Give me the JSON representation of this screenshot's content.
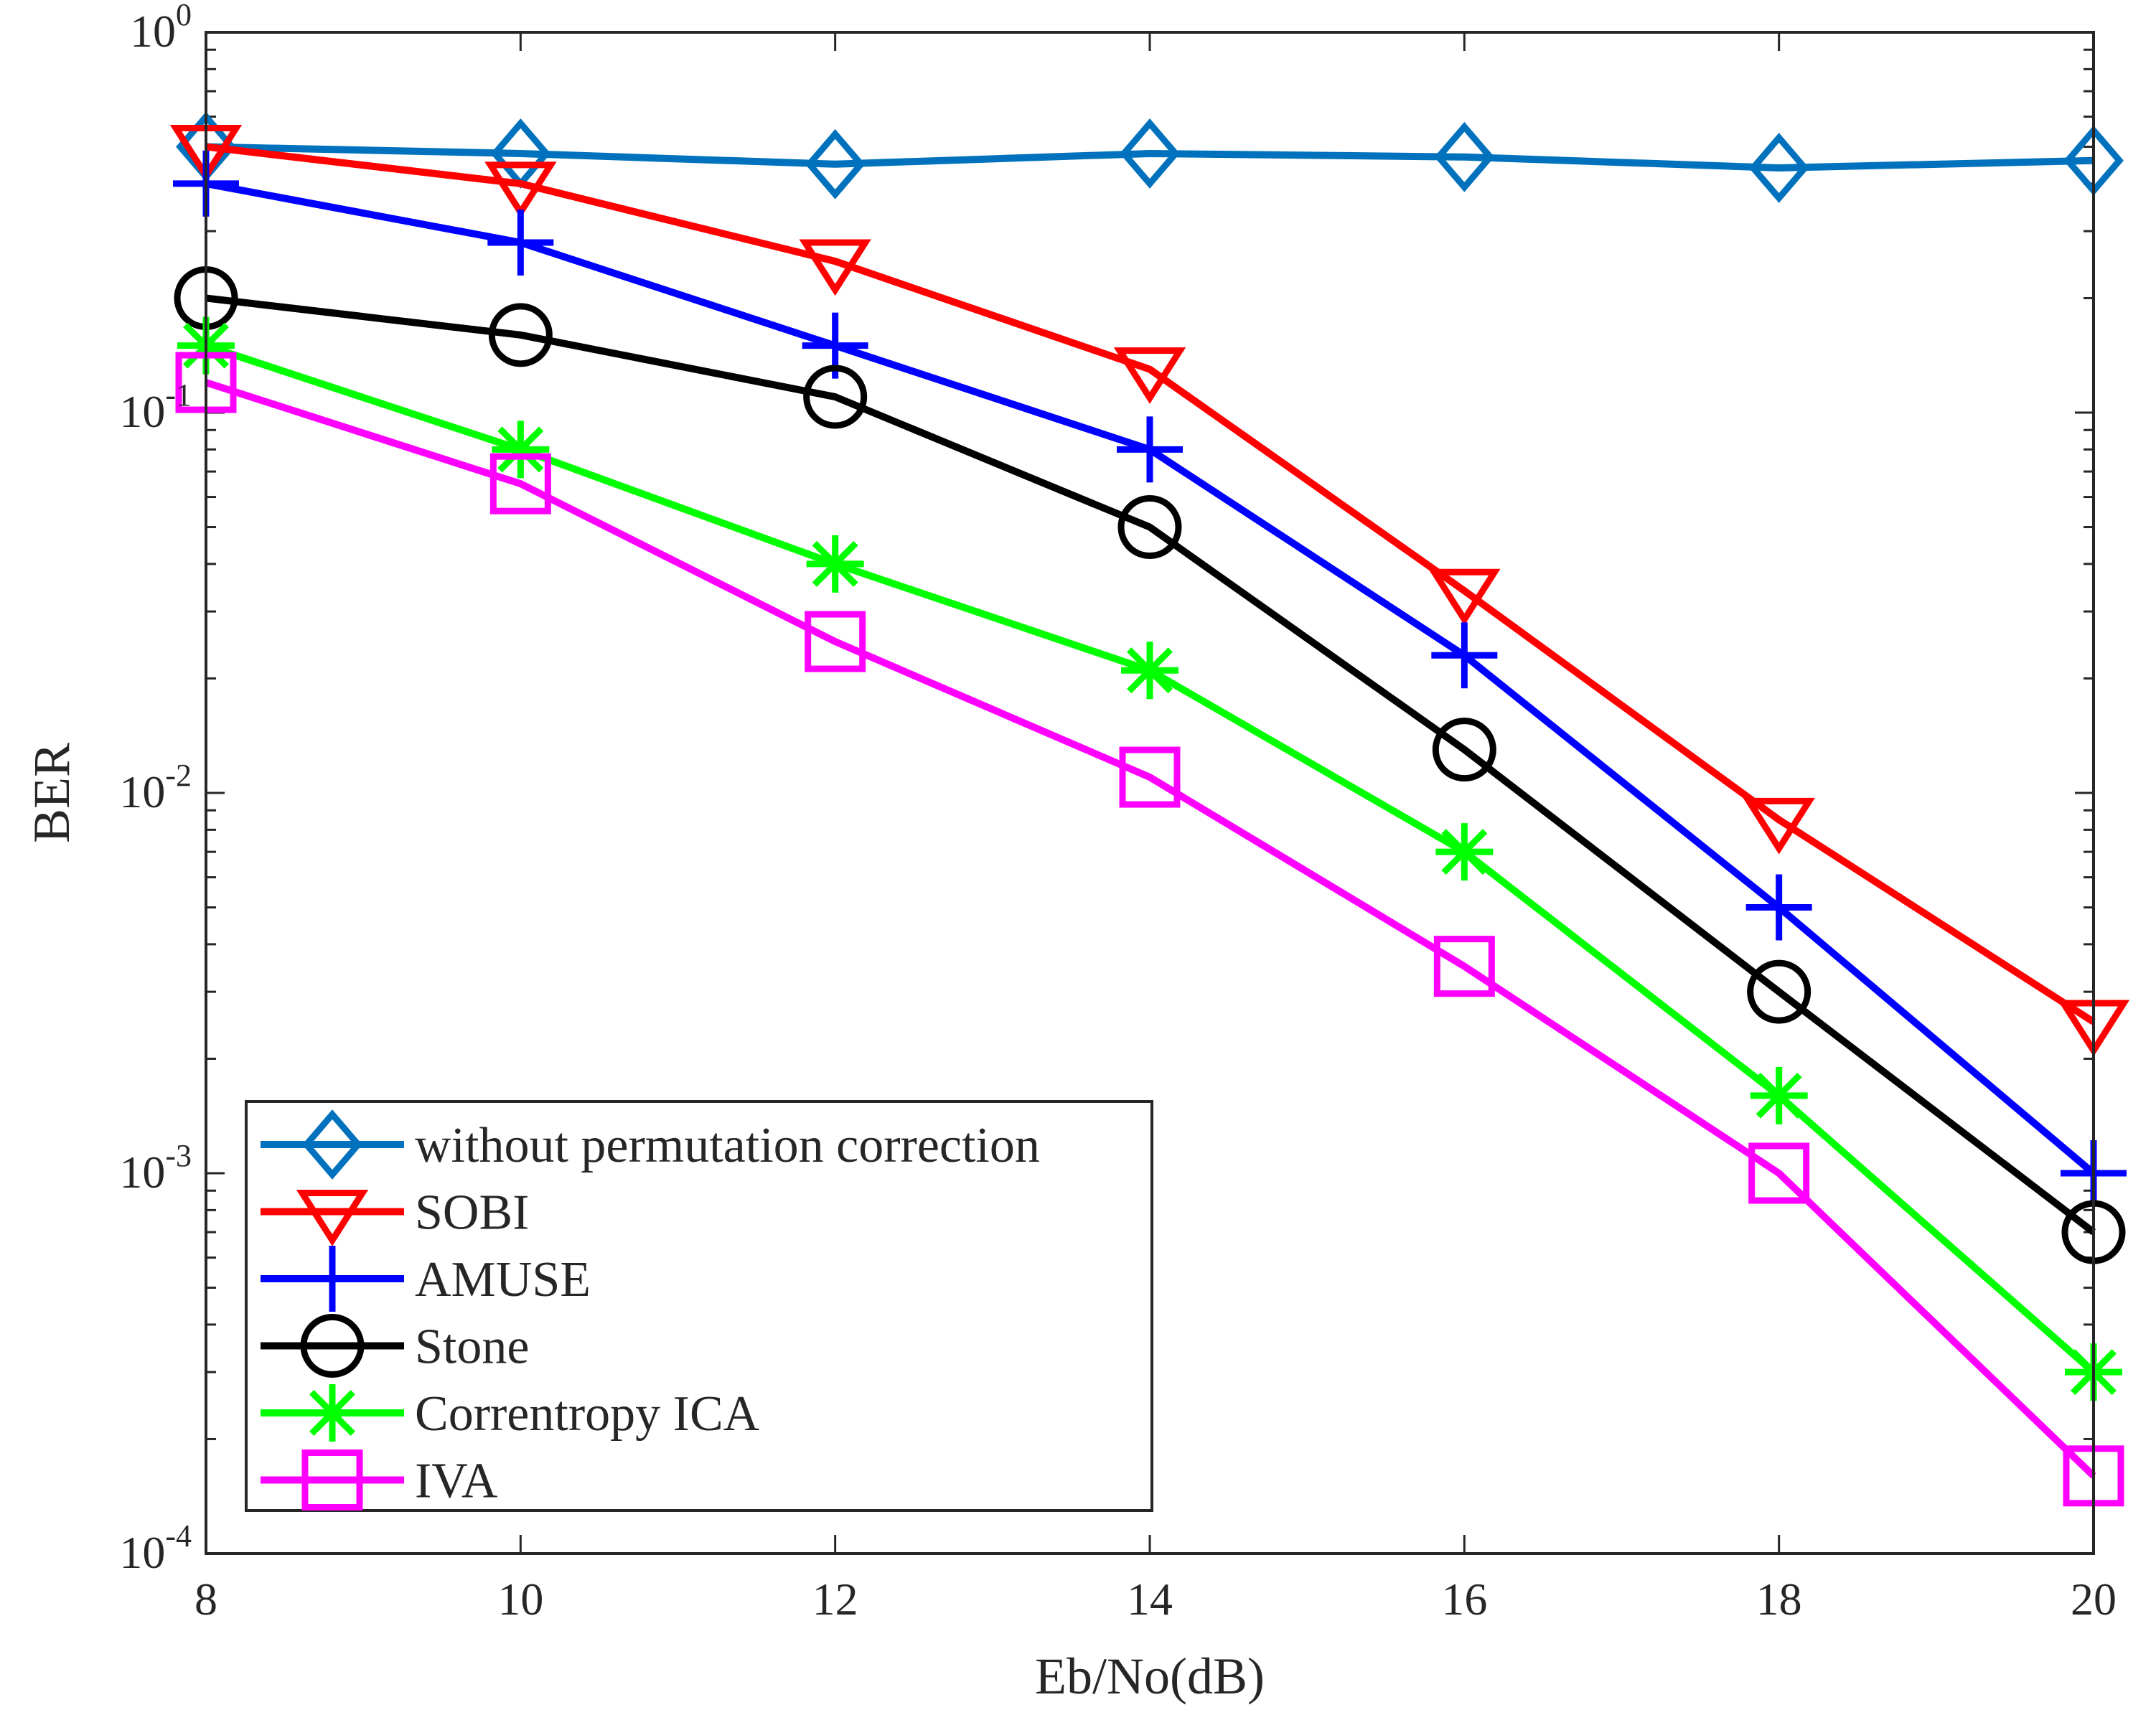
{
  "chart_data": {
    "type": "line",
    "title": "",
    "xlabel": "Eb/No(dB)",
    "ylabel": "BER",
    "yscale": "log",
    "xlim": [
      8,
      20
    ],
    "ylim": [
      0.0001,
      1
    ],
    "x": [
      8,
      10,
      12,
      14,
      16,
      18,
      20
    ],
    "xticks": [
      "8",
      "10",
      "12",
      "14",
      "16",
      "18",
      "20"
    ],
    "yticks": [
      {
        "base": "10",
        "exp": "0",
        "value": 1
      },
      {
        "base": "10",
        "exp": "-1",
        "value": 0.1
      },
      {
        "base": "10",
        "exp": "-2",
        "value": 0.01
      },
      {
        "base": "10",
        "exp": "-3",
        "value": 0.001
      },
      {
        "base": "10",
        "exp": "-4",
        "value": 0.0001
      }
    ],
    "legend_position": "bottom-left",
    "series": [
      {
        "name": "without permutation correction",
        "color": "#0072BD",
        "marker": "diamond",
        "values": [
          0.5,
          0.48,
          0.45,
          0.48,
          0.47,
          0.44,
          0.46
        ]
      },
      {
        "name": "SOBI",
        "color": "#FF0000",
        "marker": "triangle-down",
        "values": [
          0.5,
          0.4,
          0.25,
          0.13,
          0.034,
          0.0085,
          0.0025
        ]
      },
      {
        "name": "AMUSE",
        "color": "#0000FF",
        "marker": "plus",
        "values": [
          0.4,
          0.28,
          0.15,
          0.08,
          0.023,
          0.005,
          0.001
        ]
      },
      {
        "name": "Stone",
        "color": "#000000",
        "marker": "circle",
        "values": [
          0.2,
          0.16,
          0.11,
          0.05,
          0.013,
          0.003,
          0.0007
        ]
      },
      {
        "name": "Correntropy ICA",
        "color": "#00FF00",
        "marker": "asterisk",
        "values": [
          0.15,
          0.08,
          0.04,
          0.021,
          0.007,
          0.0016,
          0.0003
        ]
      },
      {
        "name": "IVA",
        "color": "#FF00FF",
        "marker": "square",
        "values": [
          0.12,
          0.065,
          0.025,
          0.011,
          0.0035,
          0.001,
          0.00016
        ]
      }
    ]
  }
}
